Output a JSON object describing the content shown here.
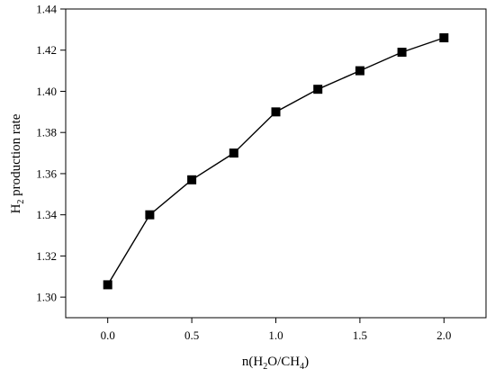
{
  "chart_data": {
    "type": "line",
    "x": [
      0.0,
      0.25,
      0.5,
      0.75,
      1.0,
      1.25,
      1.5,
      1.75,
      2.0
    ],
    "series": [
      {
        "values": [
          1.306,
          1.34,
          1.357,
          1.37,
          1.39,
          1.401,
          1.41,
          1.419,
          1.426
        ]
      }
    ],
    "xlim": [
      -0.25,
      2.25
    ],
    "ylim": [
      1.29,
      1.44
    ],
    "xticks": [
      0.0,
      0.5,
      1.0,
      1.5,
      2.0
    ],
    "xtick_labels": [
      "0.0",
      "0.5",
      "1.0",
      "1.5",
      "2.0"
    ],
    "yticks": [
      1.3,
      1.32,
      1.34,
      1.36,
      1.38,
      1.4,
      1.42,
      1.44
    ],
    "ytick_labels": [
      "1.30",
      "1.32",
      "1.34",
      "1.36",
      "1.38",
      "1.40",
      "1.42",
      "1.44"
    ],
    "xlabel": {
      "pre": "n(H",
      "sub1": "2",
      "mid": "O/CH",
      "sub2": "4",
      "post": ")"
    },
    "ylabel": {
      "pre": "H",
      "sub": "2",
      "post": " production rate"
    },
    "grid": false,
    "marker": "square",
    "line_color": "#000000",
    "marker_color": "#000000"
  }
}
